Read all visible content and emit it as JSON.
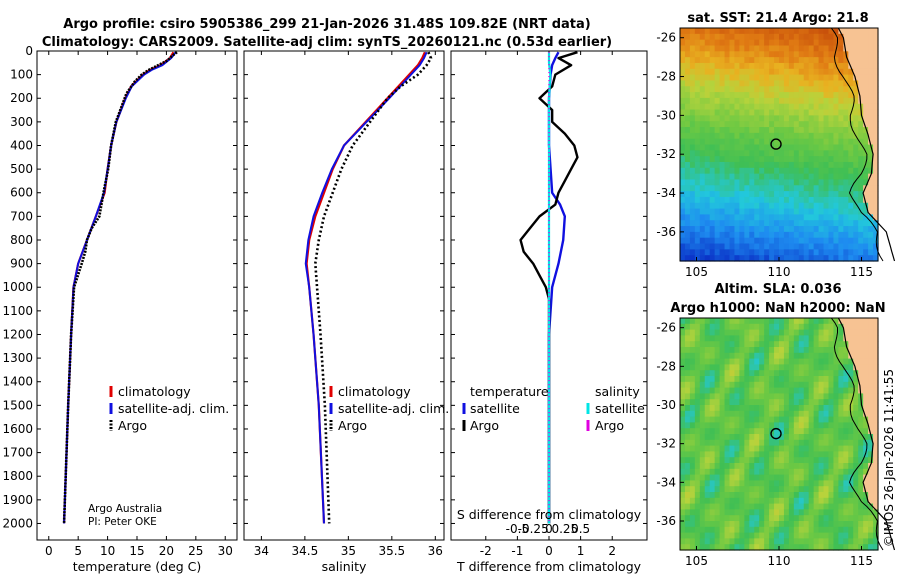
{
  "header": {
    "title_line1": "Argo profile: csiro 5905386_299 21-Jan-2026 31.48S 109.82E (NRT data)",
    "title_line2": "Climatology: CARS2009. Satellite-adj clim: synTS_20260121.nc (0.53d earlier)"
  },
  "colors": {
    "argo": "#000000",
    "climatology": "#e00000",
    "satellite": "#1010e0",
    "sat_salinity": "#00e5e5",
    "argo_salinity": "#e000e0"
  },
  "depth_axis": {
    "ticks": [
      0,
      100,
      200,
      300,
      400,
      500,
      600,
      700,
      800,
      900,
      1000,
      1100,
      1200,
      1300,
      1400,
      1500,
      1600,
      1700,
      1800,
      1900,
      2000
    ],
    "labels": [
      "0",
      "100",
      "200",
      "300",
      "400",
      "500",
      "600",
      "700",
      "800",
      "900",
      "1000",
      "1100",
      "1200",
      "1300",
      "1400",
      "1500",
      "1600",
      "1700",
      "1800",
      "1900",
      "2000"
    ]
  },
  "chart_data": [
    {
      "type": "line",
      "name": "temperature",
      "xlabel": "temperature (deg C)",
      "xlim": [
        -2,
        32
      ],
      "ylim": [
        2070,
        0
      ],
      "xticks": [
        0,
        5,
        10,
        15,
        20,
        25,
        30
      ],
      "xtick_labels": [
        "0",
        "5",
        "10",
        "15",
        "20",
        "25",
        "30"
      ],
      "legend": [
        "climatology",
        "satellite-adj. clim.",
        "Argo"
      ],
      "annotation_line1": "Argo Australia",
      "annotation_line2": "PI: Peter OKE",
      "series": [
        {
          "name": "climatology",
          "depth": [
            5,
            30,
            60,
            80,
            100,
            150,
            200,
            300,
            400,
            500,
            600,
            700,
            800,
            900,
            1000,
            1200,
            1500,
            2000
          ],
          "values": [
            21.2,
            20.6,
            19.0,
            17.2,
            16.0,
            14.0,
            13.0,
            11.5,
            10.6,
            10.0,
            9.5,
            8.0,
            6.5,
            5.0,
            4.2,
            3.8,
            3.3,
            2.6
          ]
        },
        {
          "name": "satellite-adj. clim.",
          "depth": [
            5,
            30,
            60,
            80,
            100,
            150,
            200,
            300,
            400,
            500,
            600,
            700,
            800,
            900,
            1000,
            1200,
            1500,
            2000
          ],
          "values": [
            21.6,
            20.8,
            19.3,
            17.5,
            16.2,
            14.1,
            13.1,
            11.5,
            10.6,
            10.0,
            9.4,
            8.0,
            6.5,
            5.0,
            4.2,
            3.8,
            3.3,
            2.6
          ]
        },
        {
          "name": "Argo",
          "depth": [
            5,
            20,
            40,
            60,
            80,
            100,
            130,
            180,
            200,
            300,
            400,
            500,
            600,
            700,
            750,
            800,
            850,
            900,
            1000,
            1200,
            1500,
            2000
          ],
          "values": [
            21.8,
            21.0,
            20.2,
            18.6,
            17.0,
            15.8,
            14.6,
            13.2,
            12.9,
            11.4,
            10.6,
            10.1,
            9.3,
            8.6,
            7.3,
            6.5,
            6.2,
            5.6,
            4.3,
            3.8,
            3.3,
            2.6
          ]
        }
      ]
    },
    {
      "type": "line",
      "name": "salinity",
      "xlabel": "salinity",
      "xlim": [
        33.8,
        36.1
      ],
      "ylim": [
        2070,
        0
      ],
      "xticks": [
        34,
        34.5,
        35,
        35.5,
        36
      ],
      "xtick_labels": [
        "34",
        "34.5",
        "35",
        "35.5",
        "36"
      ],
      "legend": [
        "climatology",
        "satellite-adj. clim.",
        "Argo"
      ],
      "series": [
        {
          "name": "climatology",
          "depth": [
            5,
            30,
            60,
            100,
            200,
            300,
            400,
            500,
            600,
            700,
            800,
            900,
            1000,
            1200,
            1500,
            2000
          ],
          "values": [
            35.88,
            35.85,
            35.8,
            35.7,
            35.45,
            35.2,
            34.95,
            34.82,
            34.72,
            34.62,
            34.55,
            34.52,
            34.55,
            34.6,
            34.66,
            34.72
          ]
        },
        {
          "name": "satellite-adj. clim.",
          "depth": [
            5,
            30,
            60,
            100,
            200,
            300,
            400,
            500,
            600,
            700,
            800,
            900,
            1000,
            1200,
            1500,
            2000
          ],
          "values": [
            35.9,
            35.87,
            35.82,
            35.72,
            35.47,
            35.21,
            34.95,
            34.81,
            34.7,
            34.6,
            34.54,
            34.51,
            34.55,
            34.6,
            34.66,
            34.72
          ]
        },
        {
          "name": "Argo",
          "depth": [
            5,
            30,
            60,
            100,
            150,
            200,
            300,
            400,
            500,
            600,
            700,
            800,
            900,
            1000,
            1200,
            1500,
            2000
          ],
          "values": [
            35.92,
            35.95,
            35.9,
            35.8,
            35.6,
            35.45,
            35.25,
            35.05,
            34.92,
            34.82,
            34.72,
            34.66,
            34.62,
            34.64,
            34.68,
            34.73,
            34.78
          ]
        }
      ]
    },
    {
      "type": "line",
      "name": "difference",
      "xlabel": "T difference from climatology",
      "xlabel_top": "S difference from climatology",
      "xlim": [
        -3.1,
        3.1
      ],
      "ylim": [
        2070,
        0
      ],
      "xticks": [
        -2,
        -1,
        0,
        1,
        2
      ],
      "xtick_labels": [
        "-2",
        "-1",
        "0",
        "1",
        "2"
      ],
      "s_xticks": [
        -1,
        -0.5,
        0,
        0.5,
        1
      ],
      "s_xtick_labels": [
        "-0.5",
        "-0.25",
        "0",
        "0.25",
        "0.5"
      ],
      "legend_temperature_title": "temperature",
      "legend_salinity_title": "salinity",
      "legend": [
        "satellite",
        "Argo",
        "satellite",
        "Argo"
      ],
      "series": [
        {
          "name": "T satellite",
          "depth": [
            5,
            30,
            60,
            100,
            200,
            300,
            400,
            500,
            600,
            650,
            700,
            800,
            900,
            1000,
            1200,
            2000
          ],
          "values": [
            0.3,
            0.2,
            0.1,
            0.05,
            0.0,
            0.0,
            0.0,
            0.05,
            0.1,
            0.35,
            0.5,
            0.45,
            0.3,
            0.1,
            0.0,
            0.0
          ]
        },
        {
          "name": "T Argo",
          "depth": [
            5,
            30,
            60,
            100,
            150,
            200,
            250,
            300,
            350,
            400,
            450,
            500,
            550,
            600,
            650,
            700,
            750,
            800,
            850,
            900,
            950,
            1000,
            1050,
            1100,
            1200,
            2000
          ],
          "values": [
            0.9,
            0.3,
            0.7,
            0.2,
            0.1,
            -0.3,
            0.1,
            0.1,
            0.5,
            0.8,
            0.9,
            0.7,
            0.5,
            0.3,
            0.2,
            -0.3,
            -0.6,
            -0.9,
            -0.8,
            -0.5,
            -0.3,
            -0.1,
            0.0,
            0.0,
            0.0,
            0.0
          ]
        },
        {
          "name": "S satellite",
          "depth": [
            5,
            50,
            100,
            200,
            400,
            800,
            1200,
            2000
          ],
          "values": [
            0.0,
            0.0,
            0.01,
            0.0,
            0.0,
            0.0,
            0.0,
            0.0
          ]
        },
        {
          "name": "S Argo",
          "depth": [
            5,
            100,
            500,
            1000,
            2000
          ],
          "values": [
            0.0,
            0.0,
            0.0,
            0.0,
            0.0
          ]
        }
      ]
    },
    {
      "type": "heatmap",
      "name": "sst_map",
      "title": "sat. SST: 21.4 Argo: 21.8",
      "xlim": [
        104,
        116
      ],
      "ylim": [
        -37.5,
        -25.5
      ],
      "xticks": [
        105,
        110,
        115
      ],
      "xtick_labels": [
        "105",
        "110",
        "115"
      ],
      "yticks": [
        -26,
        -28,
        -30,
        -32,
        -34,
        -36
      ],
      "ytick_labels": [
        "-26",
        "-28",
        "-30",
        "-32",
        "-34",
        "-36"
      ],
      "marker": {
        "lon": 109.82,
        "lat": -31.48
      }
    },
    {
      "type": "heatmap",
      "name": "sla_map",
      "title_line1": "Altim. SLA: 0.036",
      "title_line2": "Argo h1000: NaN h2000: NaN",
      "xlim": [
        104,
        116
      ],
      "ylim": [
        -37.5,
        -25.5
      ],
      "xticks": [
        105,
        110,
        115
      ],
      "xtick_labels": [
        "105",
        "110",
        "115"
      ],
      "yticks": [
        -26,
        -28,
        -30,
        -32,
        -34,
        -36
      ],
      "ytick_labels": [
        "-26",
        "-28",
        "-30",
        "-32",
        "-34",
        "-36"
      ],
      "marker": {
        "lon": 109.82,
        "lat": -31.48
      }
    }
  ],
  "credit": "©IMOS 26-Jan-2026 11:41:55"
}
